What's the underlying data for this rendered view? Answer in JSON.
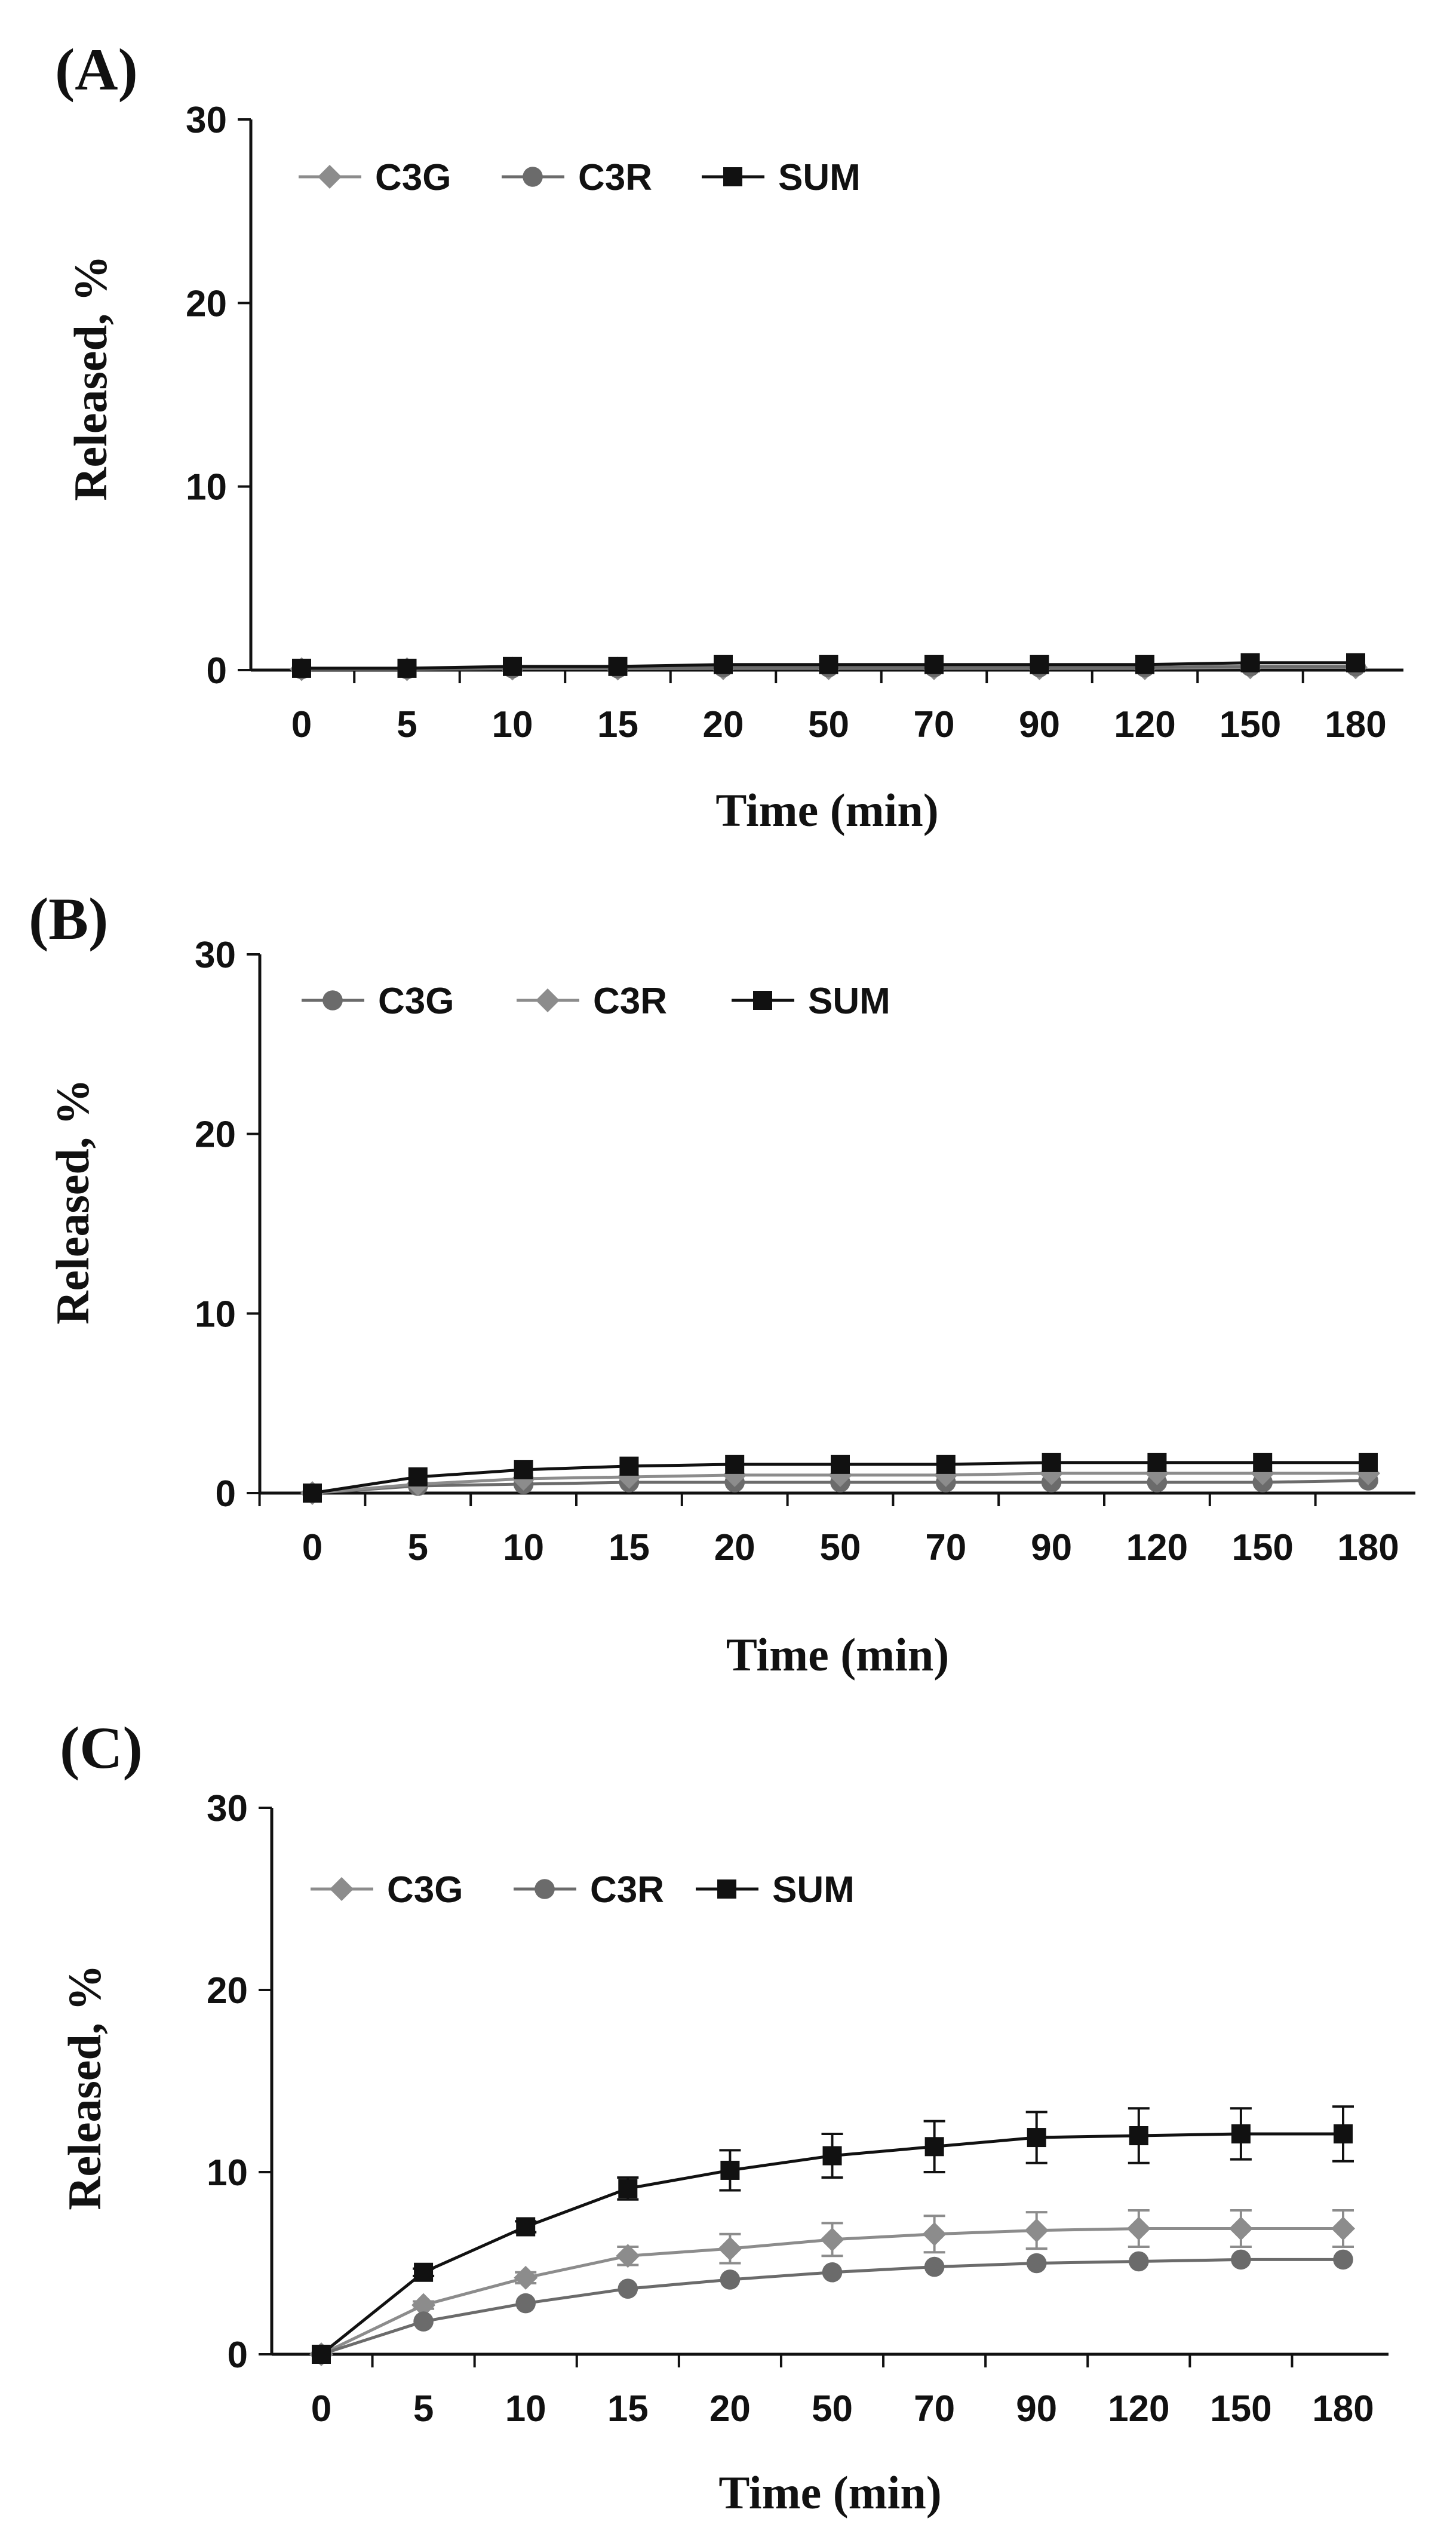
{
  "chart_data": [
    {
      "type": "line",
      "panel_label": "(A)",
      "title": "",
      "xlabel": "Time (min)",
      "ylabel": "Released, %",
      "ylim": [
        0,
        30
      ],
      "yticks": [
        0,
        10,
        20,
        30
      ],
      "categories": [
        "0",
        "5",
        "10",
        "15",
        "20",
        "50",
        "70",
        "90",
        "120",
        "150",
        "180"
      ],
      "legend_position": "top-left",
      "series": [
        {
          "name": "C3G",
          "marker": "diamond",
          "color": "#8c8c8c",
          "values": [
            0.05,
            0.05,
            0.08,
            0.08,
            0.1,
            0.1,
            0.1,
            0.1,
            0.1,
            0.15,
            0.15
          ],
          "errors": [
            0,
            0,
            0,
            0,
            0,
            0,
            0,
            0,
            0,
            0,
            0
          ]
        },
        {
          "name": "C3R",
          "marker": "circle",
          "color": "#6b6b6b",
          "values": [
            0.05,
            0.05,
            0.1,
            0.1,
            0.15,
            0.15,
            0.15,
            0.15,
            0.15,
            0.2,
            0.2
          ],
          "errors": [
            0,
            0,
            0,
            0,
            0,
            0,
            0,
            0,
            0,
            0,
            0
          ]
        },
        {
          "name": "SUM",
          "marker": "square",
          "color": "#111111",
          "values": [
            0.1,
            0.1,
            0.2,
            0.2,
            0.3,
            0.3,
            0.3,
            0.3,
            0.3,
            0.4,
            0.4
          ],
          "errors": [
            0,
            0,
            0,
            0,
            0,
            0,
            0,
            0,
            0,
            0,
            0
          ]
        }
      ]
    },
    {
      "type": "line",
      "panel_label": "(B)",
      "title": "",
      "xlabel": "Time (min)",
      "ylabel": "Released, %",
      "ylim": [
        0,
        30
      ],
      "yticks": [
        0,
        10,
        20,
        30
      ],
      "categories": [
        "0",
        "5",
        "10",
        "15",
        "20",
        "50",
        "70",
        "90",
        "120",
        "150",
        "180"
      ],
      "legend_position": "top-left",
      "series": [
        {
          "name": "C3G",
          "marker": "circle",
          "color": "#6b6b6b",
          "values": [
            0,
            0.4,
            0.5,
            0.6,
            0.6,
            0.6,
            0.6,
            0.6,
            0.6,
            0.6,
            0.7
          ],
          "errors": [
            0,
            0,
            0,
            0,
            0,
            0,
            0,
            0,
            0,
            0,
            0
          ]
        },
        {
          "name": "C3R",
          "marker": "diamond",
          "color": "#8c8c8c",
          "values": [
            0,
            0.5,
            0.8,
            0.9,
            1.0,
            1.0,
            1.0,
            1.1,
            1.1,
            1.1,
            1.1
          ],
          "errors": [
            0,
            0,
            0,
            0,
            0,
            0,
            0,
            0,
            0,
            0,
            0
          ]
        },
        {
          "name": "SUM",
          "marker": "square",
          "color": "#111111",
          "values": [
            0,
            0.9,
            1.3,
            1.5,
            1.6,
            1.6,
            1.6,
            1.7,
            1.7,
            1.7,
            1.7
          ],
          "errors": [
            0,
            0,
            0,
            0,
            0,
            0,
            0,
            0,
            0,
            0,
            0
          ]
        }
      ]
    },
    {
      "type": "line",
      "panel_label": "(C)",
      "title": "",
      "xlabel": "Time (min)",
      "ylabel": "Released, %",
      "ylim": [
        0,
        30
      ],
      "yticks": [
        0,
        10,
        20,
        30
      ],
      "categories": [
        "0",
        "5",
        "10",
        "15",
        "20",
        "50",
        "70",
        "90",
        "120",
        "150",
        "180"
      ],
      "legend_position": "top-left",
      "series": [
        {
          "name": "C3G",
          "marker": "diamond",
          "color": "#8c8c8c",
          "values": [
            0,
            2.7,
            4.2,
            5.4,
            5.8,
            6.3,
            6.6,
            6.8,
            6.9,
            6.9,
            6.9
          ],
          "errors": [
            0,
            0.2,
            0.3,
            0.5,
            0.8,
            0.9,
            1.0,
            1.0,
            1.0,
            1.0,
            1.0
          ]
        },
        {
          "name": "C3R",
          "marker": "circle",
          "color": "#6b6b6b",
          "values": [
            0,
            1.8,
            2.8,
            3.6,
            4.1,
            4.5,
            4.8,
            5.0,
            5.1,
            5.2,
            5.2
          ],
          "errors": [
            0,
            0,
            0,
            0,
            0,
            0,
            0,
            0,
            0,
            0,
            0
          ]
        },
        {
          "name": "SUM",
          "marker": "square",
          "color": "#111111",
          "values": [
            0,
            4.5,
            7.0,
            9.1,
            10.1,
            10.9,
            11.4,
            11.9,
            12.0,
            12.1,
            12.1
          ],
          "errors": [
            0,
            0.2,
            0.3,
            0.6,
            1.1,
            1.2,
            1.4,
            1.4,
            1.5,
            1.4,
            1.5
          ]
        }
      ]
    }
  ]
}
